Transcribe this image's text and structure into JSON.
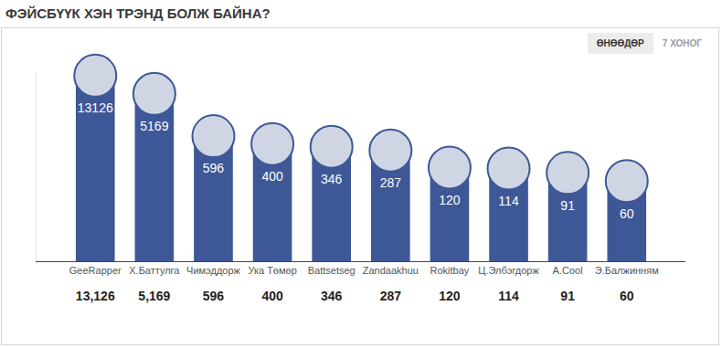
{
  "chart_data": {
    "type": "bar",
    "title": "ФЭЙСБҮҮК ХЭН ТРЭНД БОЛЖ БАЙНА?",
    "tabs": [
      "ӨНӨӨДӨР",
      "7 ХОНОГ"
    ],
    "categories": [
      "GeeRapper",
      "Х.Баттулга",
      "Чимэддорж",
      "Ука Төмөр",
      "Battsetseg",
      "Zandaakhuu",
      "Rokitbay",
      "Ц.Элбэгдорж",
      "A.Cool",
      "Э.Балжинням"
    ],
    "values": [
      13126,
      5169,
      596,
      400,
      346,
      287,
      120,
      114,
      91,
      60
    ],
    "value_labels": [
      "13,126",
      "5,169",
      "596",
      "400",
      "346",
      "287",
      "120",
      "114",
      "91",
      "60"
    ],
    "color": "#3e5897",
    "log": "y",
    "ylim": [
      1,
      15000
    ],
    "data_labels": true,
    "tick_labels": "x",
    "grid": false
  }
}
